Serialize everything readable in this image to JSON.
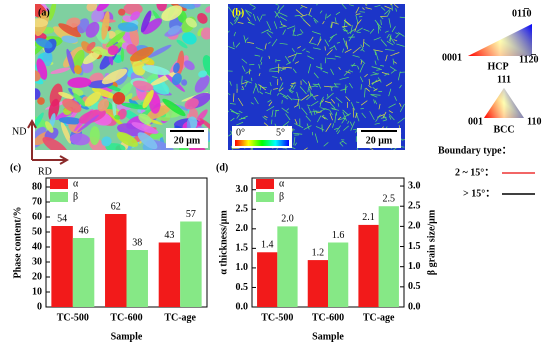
{
  "panels": {
    "a": {
      "label": "(a)",
      "scale_bar": "20 μm"
    },
    "b": {
      "label": "(b)",
      "scale_bar": "20 μm",
      "colorbar_min": "0°",
      "colorbar_max": "5°"
    }
  },
  "directions": {
    "nd": "ND",
    "rd": "RD"
  },
  "ipf_legend": {
    "hcp": {
      "name": "HCP",
      "top": "011̅0",
      "left": "0001",
      "right": "112̅0"
    },
    "bcc": {
      "name": "BCC",
      "top": "111",
      "left": "001",
      "right": "110"
    }
  },
  "boundary_legend": {
    "title": "Boundary type：",
    "low": "2 ~ 15°：",
    "high": "> 15°："
  },
  "chart_data": [
    {
      "type": "bar",
      "panel_label": "(c)",
      "x_label": "Sample",
      "y_label": "Phase content/%",
      "categories": [
        "TC-500",
        "TC-600",
        "TC-age"
      ],
      "series": [
        {
          "name": "α",
          "color": "#f21a1a",
          "values": [
            54,
            62,
            43
          ]
        },
        {
          "name": "β",
          "color": "#86e886",
          "values": [
            46,
            38,
            57
          ]
        }
      ],
      "ylim": [
        0,
        86
      ],
      "yticks": [
        0,
        10,
        20,
        30,
        40,
        50,
        60,
        70,
        80
      ]
    },
    {
      "type": "bar",
      "panel_label": "(d)",
      "x_label": "Sample",
      "y_label": "α thickness/μm",
      "y2_label": "β grain size/μm",
      "categories": [
        "TC-500",
        "TC-600",
        "TC-age"
      ],
      "series": [
        {
          "name": "α",
          "color": "#f21a1a",
          "values": [
            1.4,
            1.2,
            2.1
          ],
          "value_labels": [
            "1.4",
            "1.2",
            "2.1"
          ]
        },
        {
          "name": "β",
          "color": "#86e886",
          "axis": "y2",
          "values": [
            2,
            1.6,
            2.5
          ],
          "value_labels": [
            "2.0",
            "1.6",
            "2.5"
          ]
        }
      ],
      "ylim": [
        0,
        3.3
      ],
      "yticks": [
        {
          "value": 0,
          "label": "0.0"
        },
        0.5,
        {
          "value": 1,
          "label": "1.0"
        },
        1.5,
        {
          "value": 2,
          "label": "2.0"
        },
        2.5,
        {
          "value": 3,
          "label": "3.0"
        }
      ],
      "y2lim": [
        0,
        3.2
      ],
      "y2ticks": [
        {
          "value": 0,
          "label": "0.0"
        },
        0.5,
        {
          "value": 1,
          "label": "1.0"
        },
        1.5,
        {
          "value": 2,
          "label": "2.0"
        },
        2.5,
        {
          "value": 3,
          "label": "3.0"
        }
      ]
    }
  ]
}
